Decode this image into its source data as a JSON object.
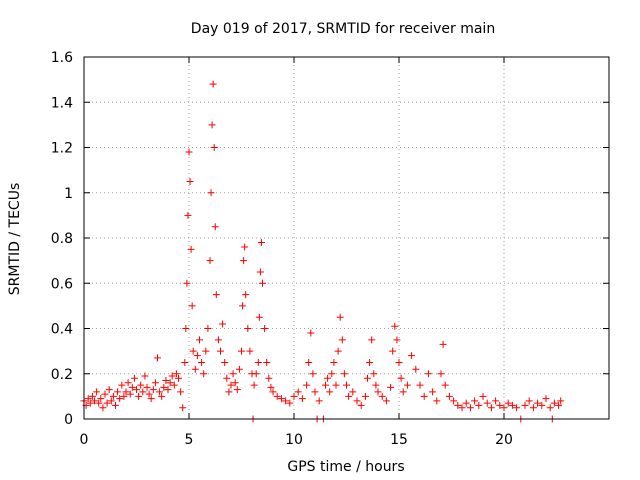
{
  "chart_data": {
    "type": "scatter",
    "title": "Day 019 of 2017, SRMTID for receiver main",
    "xlabel": "GPS time / hours",
    "ylabel": "SRMTID / TECUs",
    "xlim": [
      0,
      25
    ],
    "ylim": [
      0,
      1.6
    ],
    "xticks": [
      0,
      5,
      10,
      15,
      20
    ],
    "xtick_labels": [
      "0",
      "5",
      "10",
      "15",
      "20"
    ],
    "yticks": [
      0,
      0.2,
      0.4,
      0.6,
      0.8,
      1.0,
      1.2,
      1.4,
      1.6
    ],
    "ytick_labels": [
      "0",
      "0.2",
      "0.4",
      "0.6",
      "0.8",
      "1",
      "1.2",
      "1.4",
      "1.6"
    ],
    "grid": true,
    "marker": "+",
    "series_color": "#ff0000",
    "series": [
      {
        "name": "SRMTID",
        "points": [
          [
            0.0,
            0.08
          ],
          [
            0.1,
            0.06
          ],
          [
            0.2,
            0.09
          ],
          [
            0.3,
            0.07
          ],
          [
            0.4,
            0.1
          ],
          [
            0.5,
            0.08
          ],
          [
            0.6,
            0.12
          ],
          [
            0.7,
            0.07
          ],
          [
            0.8,
            0.09
          ],
          [
            0.9,
            0.05
          ],
          [
            1.0,
            0.11
          ],
          [
            1.1,
            0.07
          ],
          [
            1.2,
            0.13
          ],
          [
            1.3,
            0.08
          ],
          [
            1.4,
            0.1
          ],
          [
            1.5,
            0.06
          ],
          [
            1.6,
            0.12
          ],
          [
            1.7,
            0.09
          ],
          [
            1.8,
            0.15
          ],
          [
            1.9,
            0.1
          ],
          [
            2.0,
            0.12
          ],
          [
            2.1,
            0.16
          ],
          [
            2.2,
            0.11
          ],
          [
            2.3,
            0.14
          ],
          [
            2.4,
            0.18
          ],
          [
            2.5,
            0.13
          ],
          [
            2.6,
            0.1
          ],
          [
            2.7,
            0.15
          ],
          [
            2.8,
            0.12
          ],
          [
            2.9,
            0.19
          ],
          [
            3.0,
            0.14
          ],
          [
            3.1,
            0.11
          ],
          [
            3.2,
            0.09
          ],
          [
            3.3,
            0.13
          ],
          [
            3.4,
            0.16
          ],
          [
            3.5,
            0.27
          ],
          [
            3.6,
            0.12
          ],
          [
            3.7,
            0.1
          ],
          [
            3.8,
            0.14
          ],
          [
            3.9,
            0.17
          ],
          [
            4.0,
            0.13
          ],
          [
            4.1,
            0.16
          ],
          [
            4.2,
            0.19
          ],
          [
            4.3,
            0.15
          ],
          [
            4.4,
            0.2
          ],
          [
            4.5,
            0.18
          ],
          [
            4.6,
            0.12
          ],
          [
            4.7,
            0.05
          ],
          [
            4.8,
            0.25
          ],
          [
            4.85,
            0.4
          ],
          [
            4.9,
            0.6
          ],
          [
            4.95,
            0.9
          ],
          [
            5.0,
            1.18
          ],
          [
            5.05,
            1.05
          ],
          [
            5.1,
            0.75
          ],
          [
            5.15,
            0.5
          ],
          [
            5.2,
            0.3
          ],
          [
            5.3,
            0.22
          ],
          [
            5.4,
            0.28
          ],
          [
            5.5,
            0.35
          ],
          [
            5.6,
            0.25
          ],
          [
            5.7,
            0.2
          ],
          [
            5.8,
            0.3
          ],
          [
            5.9,
            0.4
          ],
          [
            6.0,
            0.7
          ],
          [
            6.05,
            1.0
          ],
          [
            6.1,
            1.3
          ],
          [
            6.15,
            1.48
          ],
          [
            6.2,
            1.2
          ],
          [
            6.25,
            0.85
          ],
          [
            6.3,
            0.55
          ],
          [
            6.4,
            0.35
          ],
          [
            6.5,
            0.3
          ],
          [
            6.6,
            0.42
          ],
          [
            6.7,
            0.25
          ],
          [
            6.8,
            0.18
          ],
          [
            6.9,
            0.12
          ],
          [
            7.0,
            0.15
          ],
          [
            7.1,
            0.2
          ],
          [
            7.2,
            0.16
          ],
          [
            7.3,
            0.13
          ],
          [
            7.4,
            0.22
          ],
          [
            7.5,
            0.3
          ],
          [
            7.55,
            0.5
          ],
          [
            7.6,
            0.7
          ],
          [
            7.65,
            0.76
          ],
          [
            7.7,
            0.55
          ],
          [
            7.8,
            0.4
          ],
          [
            7.9,
            0.3
          ],
          [
            8.0,
            0.2
          ],
          [
            8.05,
            0.0
          ],
          [
            8.1,
            0.15
          ],
          [
            8.2,
            0.2
          ],
          [
            8.3,
            0.25
          ],
          [
            8.35,
            0.45
          ],
          [
            8.4,
            0.65
          ],
          [
            8.45,
            0.78
          ],
          [
            8.5,
            0.6
          ],
          [
            8.6,
            0.4
          ],
          [
            8.7,
            0.25
          ],
          [
            8.8,
            0.18
          ],
          [
            8.9,
            0.14
          ],
          [
            9.0,
            0.12
          ],
          [
            9.2,
            0.1
          ],
          [
            9.4,
            0.09
          ],
          [
            9.6,
            0.08
          ],
          [
            9.8,
            0.07
          ],
          [
            10.0,
            0.1
          ],
          [
            10.2,
            0.12
          ],
          [
            10.4,
            0.09
          ],
          [
            10.6,
            0.15
          ],
          [
            10.7,
            0.25
          ],
          [
            10.8,
            0.38
          ],
          [
            10.9,
            0.2
          ],
          [
            11.0,
            0.12
          ],
          [
            11.1,
            0.0
          ],
          [
            11.2,
            0.08
          ],
          [
            11.4,
            0.0
          ],
          [
            11.5,
            0.15
          ],
          [
            11.6,
            0.18
          ],
          [
            11.7,
            0.12
          ],
          [
            11.8,
            0.2
          ],
          [
            11.9,
            0.25
          ],
          [
            12.0,
            0.15
          ],
          [
            12.1,
            0.3
          ],
          [
            12.2,
            0.45
          ],
          [
            12.3,
            0.35
          ],
          [
            12.4,
            0.2
          ],
          [
            12.5,
            0.15
          ],
          [
            12.6,
            0.1
          ],
          [
            12.8,
            0.12
          ],
          [
            13.0,
            0.08
          ],
          [
            13.2,
            0.06
          ],
          [
            13.4,
            0.1
          ],
          [
            13.5,
            0.18
          ],
          [
            13.6,
            0.25
          ],
          [
            13.7,
            0.35
          ],
          [
            13.8,
            0.2
          ],
          [
            13.9,
            0.15
          ],
          [
            14.0,
            0.12
          ],
          [
            14.2,
            0.1
          ],
          [
            14.4,
            0.08
          ],
          [
            14.6,
            0.14
          ],
          [
            14.7,
            0.3
          ],
          [
            14.8,
            0.41
          ],
          [
            14.9,
            0.35
          ],
          [
            15.0,
            0.25
          ],
          [
            15.1,
            0.18
          ],
          [
            15.2,
            0.12
          ],
          [
            15.4,
            0.15
          ],
          [
            15.6,
            0.28
          ],
          [
            15.8,
            0.22
          ],
          [
            16.0,
            0.15
          ],
          [
            16.2,
            0.1
          ],
          [
            16.4,
            0.2
          ],
          [
            16.6,
            0.12
          ],
          [
            16.8,
            0.08
          ],
          [
            17.0,
            0.2
          ],
          [
            17.1,
            0.33
          ],
          [
            17.2,
            0.15
          ],
          [
            17.4,
            0.1
          ],
          [
            17.6,
            0.08
          ],
          [
            17.8,
            0.06
          ],
          [
            18.0,
            0.05
          ],
          [
            18.2,
            0.07
          ],
          [
            18.4,
            0.05
          ],
          [
            18.6,
            0.08
          ],
          [
            18.8,
            0.06
          ],
          [
            19.0,
            0.1
          ],
          [
            19.2,
            0.07
          ],
          [
            19.4,
            0.05
          ],
          [
            19.6,
            0.08
          ],
          [
            19.8,
            0.06
          ],
          [
            20.0,
            0.05
          ],
          [
            20.2,
            0.07
          ],
          [
            20.4,
            0.06
          ],
          [
            20.6,
            0.05
          ],
          [
            20.8,
            0.0
          ],
          [
            21.0,
            0.06
          ],
          [
            21.2,
            0.08
          ],
          [
            21.4,
            0.05
          ],
          [
            21.6,
            0.07
          ],
          [
            21.8,
            0.06
          ],
          [
            22.0,
            0.09
          ],
          [
            22.2,
            0.05
          ],
          [
            22.3,
            0.0
          ],
          [
            22.4,
            0.07
          ],
          [
            22.6,
            0.06
          ],
          [
            22.7,
            0.08
          ]
        ]
      }
    ]
  }
}
